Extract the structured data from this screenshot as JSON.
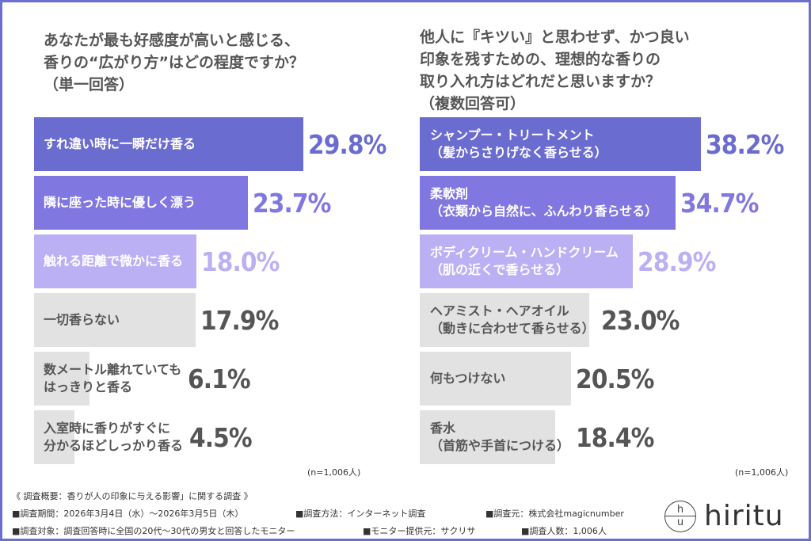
{
  "chart_data": [
    {
      "type": "bar",
      "orientation": "horizontal",
      "title": "あなたが最も好感度が高いと感じる、\n香りの“広がり方”はどの程度ですか？\n（単一回答）",
      "categories": [
        "すれ違い時に一瞬だけ香る",
        "隣に座った時に優しく漂う",
        "触れる距離で微かに香る",
        "一切香らない",
        "数メートル離れていても\nはっきりと香る",
        "入室時に香りがすぐに\n分かるほどしっかり香る"
      ],
      "values": [
        29.8,
        23.7,
        18.0,
        17.9,
        6.1,
        4.5
      ],
      "value_labels": [
        "29.8%",
        "23.7%",
        "18.0%",
        "17.9%",
        "6.1%",
        "4.5%"
      ],
      "bar_colors": [
        "#6b6ccf",
        "#8177e0",
        "#bcb0f5",
        "#e2e2e2",
        "#e2e2e2",
        "#e2e2e2"
      ],
      "label_colors": [
        "#ffffff",
        "#ffffff",
        "#ffffff",
        "#555555",
        "#555555",
        "#555555"
      ],
      "value_colors": [
        "#6b6ccf",
        "#8177e0",
        "#bcb0f5",
        "#555555",
        "#555555",
        "#555555"
      ],
      "note": "(n=1,006人)"
    },
    {
      "type": "bar",
      "orientation": "horizontal",
      "title": "他人に『キツい』と思わせず、かつ良い\n印象を残すための、理想的な香りの\n取り入れ方はどれだと思いますか？\n（複数回答可）",
      "categories": [
        "シャンプー・トリートメント\n（髪からさりげなく香らせる）",
        "柔軟剤\n（衣類から自然に、ふんわり香らせる）",
        "ボディクリーム・ハンドクリーム\n（肌の近くで香らせる）",
        "ヘアミスト・ヘアオイル\n（動きに合わせて香らせる）",
        "何もつけない",
        "香水\n（首筋や手首につける）"
      ],
      "values": [
        38.2,
        34.7,
        28.9,
        23.0,
        20.5,
        18.4
      ],
      "value_labels": [
        "38.2%",
        "34.7%",
        "28.9%",
        "23.0%",
        "20.5%",
        "18.4%"
      ],
      "bar_colors": [
        "#6b6ccf",
        "#8177e0",
        "#bcb0f5",
        "#e2e2e2",
        "#e2e2e2",
        "#e2e2e2"
      ],
      "label_colors": [
        "#ffffff",
        "#ffffff",
        "#ffffff",
        "#555555",
        "#555555",
        "#555555"
      ],
      "value_colors": [
        "#6b6ccf",
        "#8177e0",
        "#bcb0f5",
        "#555555",
        "#555555",
        "#555555"
      ],
      "note": "(n=1,006人)"
    }
  ],
  "footer": {
    "title": "《 調査概要：香りが人の印象に与える影響」に関する調査 》",
    "period": "■調査期間：2026年3月4日（水）～2026年3月5日（木）",
    "method": "■調査方法：インターネット調査",
    "source": "■調査元：株式会社magicnumber",
    "target": "■調査対象：調査回答時に全国の20代～30代の男女と回答したモニター",
    "provider": "■モニター提供元：サクリサ",
    "count": "■調査人数：1,006人"
  },
  "logo": {
    "mark_top": "h",
    "mark_bottom": "u",
    "word": "hiritu"
  },
  "colors": {
    "frame": "#6b6fd0"
  }
}
